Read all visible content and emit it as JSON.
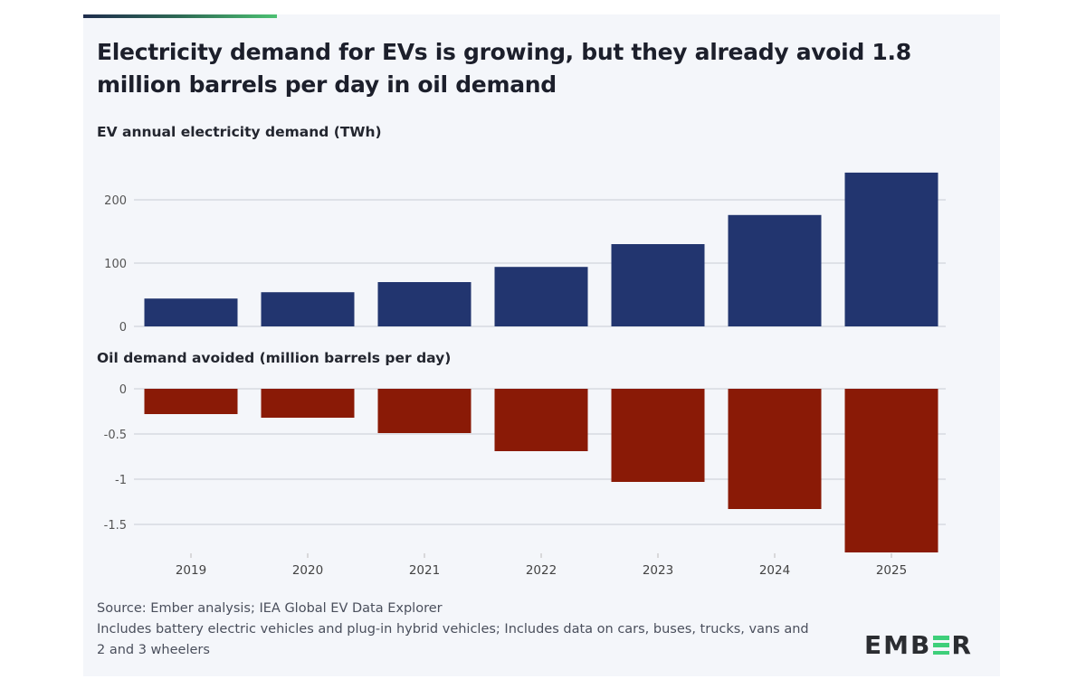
{
  "title": "Electricity demand for EVs is growing, but they already avoid 1.8 million barrels per day in oil demand",
  "footer": {
    "source": "Source: Ember analysis; IEA Global EV Data Explorer",
    "note": "Includes battery electric vehicles and plug-in hybrid vehicles; Includes data on cars, buses, trucks, vans and 2 and 3 wheelers"
  },
  "logo": "EMBER",
  "colors": {
    "accent_top": "#1f2d4d",
    "accent_green": "#4cc072",
    "electricity": "#22356f",
    "oil": "#8a1a06"
  },
  "chart_data": [
    {
      "type": "bar",
      "title": "EV annual electricity demand (TWh)",
      "categories": [
        "2019",
        "2020",
        "2021",
        "2022",
        "2023",
        "2024",
        "2025"
      ],
      "values": [
        44,
        54,
        70,
        94,
        130,
        176,
        243
      ],
      "yticks": [
        "0",
        "100",
        "200"
      ],
      "ylim": [
        0,
        250
      ],
      "grid": true
    },
    {
      "type": "bar",
      "title": "Oil demand avoided (million barrels per day)",
      "categories": [
        "2019",
        "2020",
        "2021",
        "2022",
        "2023",
        "2024",
        "2025"
      ],
      "values": [
        -0.28,
        -0.32,
        -0.49,
        -0.69,
        -1.03,
        -1.33,
        -1.81
      ],
      "yticks": [
        "0",
        "-0.5",
        "-1",
        "-1.5"
      ],
      "ylim": [
        -1.85,
        0
      ],
      "grid": true
    }
  ]
}
